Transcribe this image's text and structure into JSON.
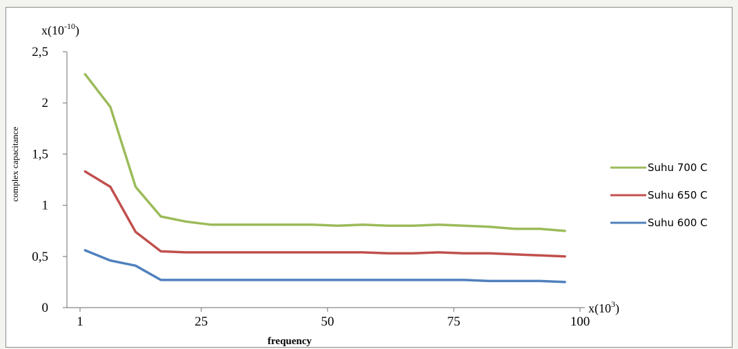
{
  "chart_data": {
    "type": "line",
    "ylabel": "complex capacitance",
    "xlabel": "frequency",
    "y_multiplier": {
      "base": "x(10",
      "exp": "-10",
      "close": ")"
    },
    "x_multiplier": {
      "base": "x(10",
      "exp": "3",
      "close": ")"
    },
    "ylim": [
      0,
      2.5
    ],
    "xlim": [
      0,
      100
    ],
    "yticks": [
      {
        "value": 0,
        "label": "0"
      },
      {
        "value": 0.5,
        "label": "0,5"
      },
      {
        "value": 1,
        "label": "1"
      },
      {
        "value": 1.5,
        "label": "1,5"
      },
      {
        "value": 2,
        "label": "2"
      },
      {
        "value": 2.5,
        "label": "2,5"
      }
    ],
    "xticks": [
      {
        "value": 1,
        "label": "1"
      },
      {
        "value": 25,
        "label": "25"
      },
      {
        "value": 50,
        "label": "50"
      },
      {
        "value": 75,
        "label": "75"
      },
      {
        "value": 100,
        "label": "100"
      }
    ],
    "grid": false,
    "legend_position": "right",
    "x": [
      2,
      7,
      12,
      17,
      22,
      27,
      32,
      37,
      42,
      47,
      52,
      57,
      62,
      67,
      72,
      77,
      82,
      87,
      92,
      97
    ],
    "series": [
      {
        "name": "Suhu 700 C",
        "color": "#9bbb59",
        "values": [
          2.28,
          1.96,
          1.18,
          0.89,
          0.84,
          0.81,
          0.81,
          0.81,
          0.81,
          0.81,
          0.8,
          0.81,
          0.8,
          0.8,
          0.81,
          0.8,
          0.79,
          0.77,
          0.77,
          0.75
        ]
      },
      {
        "name": "Suhu 650 C",
        "color": "#c0504d",
        "values": [
          1.33,
          1.18,
          0.74,
          0.55,
          0.54,
          0.54,
          0.54,
          0.54,
          0.54,
          0.54,
          0.54,
          0.54,
          0.53,
          0.53,
          0.54,
          0.53,
          0.53,
          0.52,
          0.51,
          0.5
        ]
      },
      {
        "name": "Suhu 600 C",
        "color": "#4f81bd",
        "values": [
          0.56,
          0.46,
          0.41,
          0.27,
          0.27,
          0.27,
          0.27,
          0.27,
          0.27,
          0.27,
          0.27,
          0.27,
          0.27,
          0.27,
          0.27,
          0.27,
          0.26,
          0.26,
          0.26,
          0.25
        ]
      }
    ]
  }
}
